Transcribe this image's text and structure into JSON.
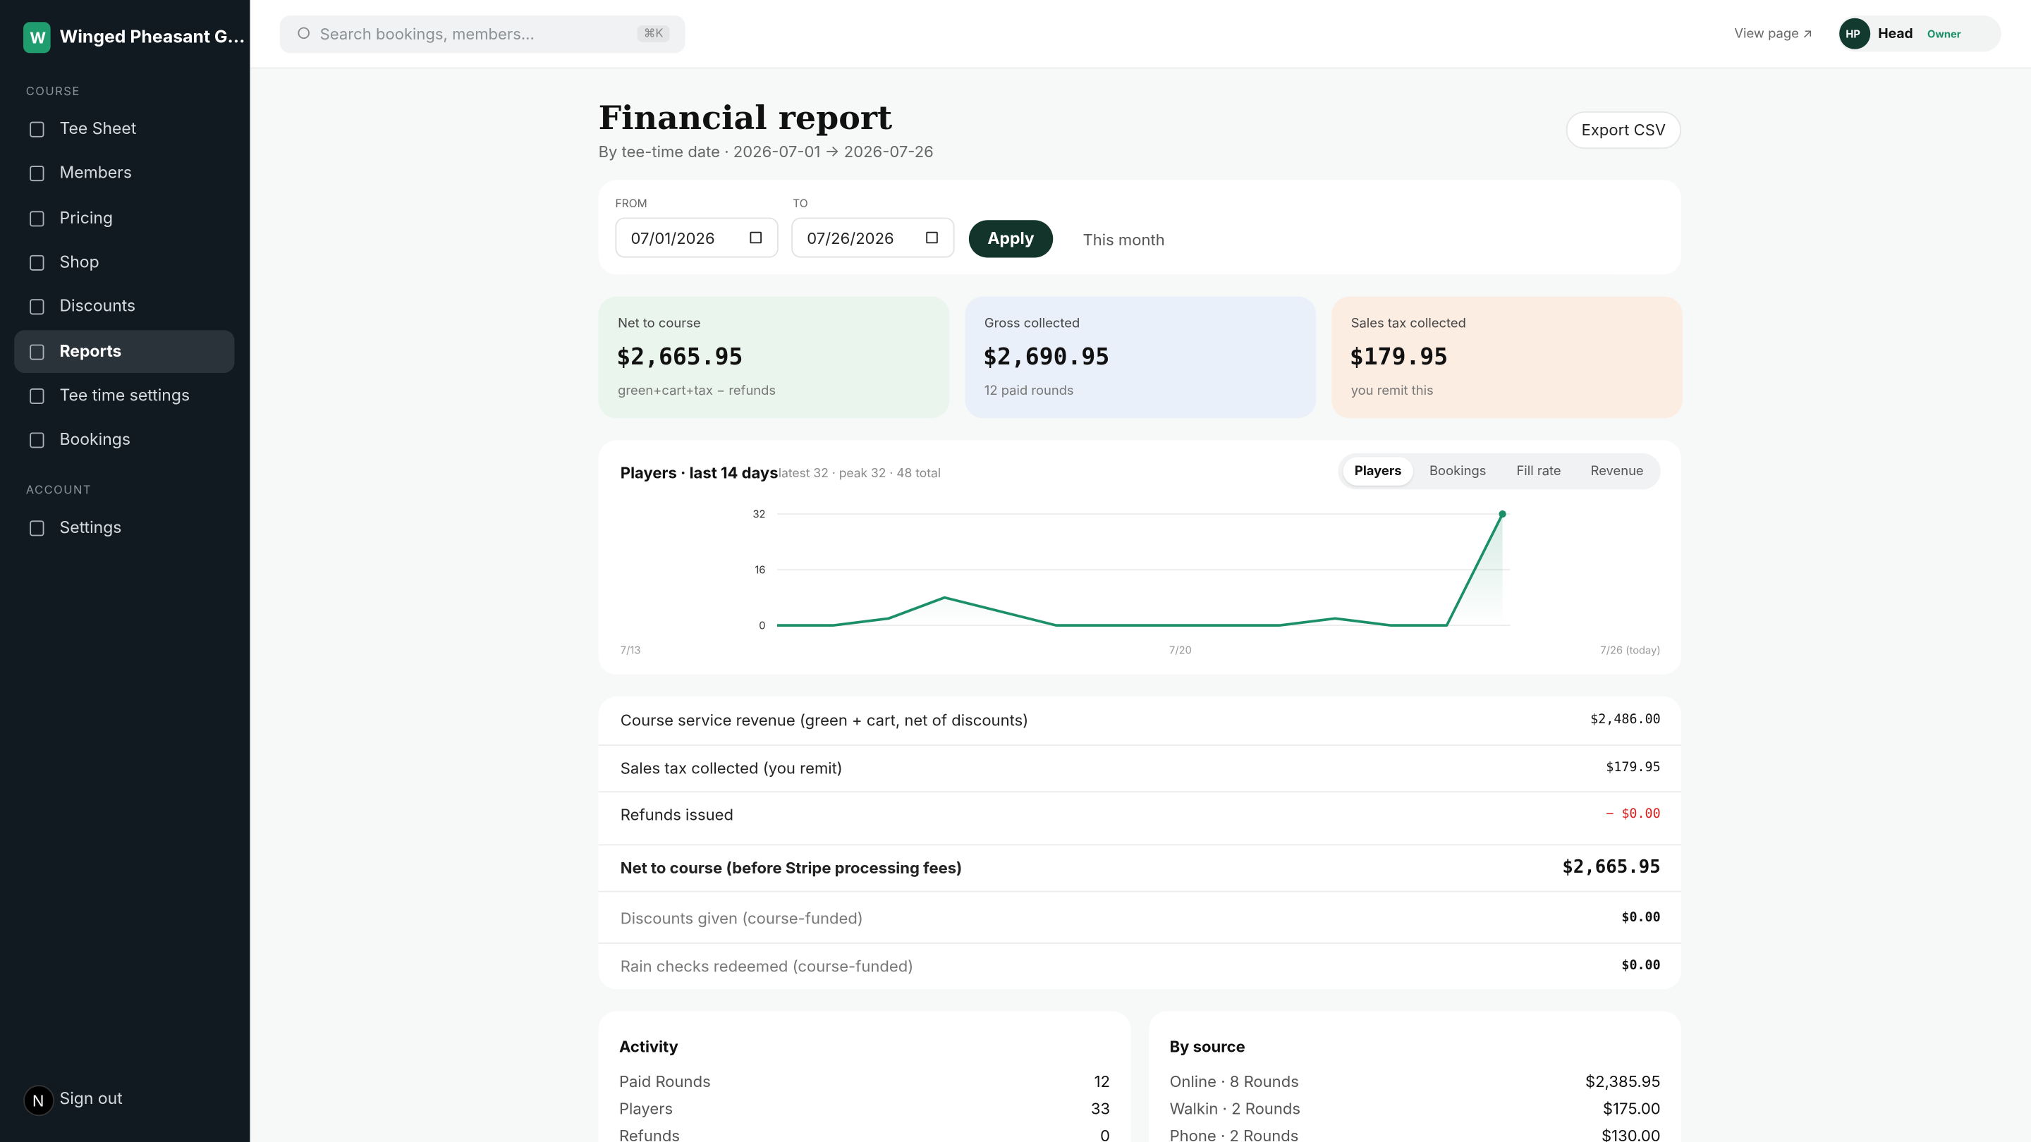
{
  "sidebar": {
    "logo": "W",
    "brand": "Winged Pheasant G...",
    "sections": [
      {
        "title": "COURSE",
        "items": [
          "Tee Sheet",
          "Members",
          "Pricing",
          "Shop",
          "Discounts",
          "Reports",
          "Tee time settings",
          "Bookings"
        ]
      },
      {
        "title": "ACCOUNT",
        "items": [
          "Settings"
        ]
      }
    ],
    "active": "Reports",
    "avatar": "N",
    "signout": "Sign out"
  },
  "topbar": {
    "search": "Search bookings, members...",
    "shortcut": "⌘K",
    "view_page": "View page ↗",
    "initials": "HP",
    "user": "Head",
    "role": "Owner"
  },
  "header": {
    "title": "Financial report",
    "subtitle": "By tee-time date · 2026-07-01 → 2026-07-26",
    "export": "Export CSV"
  },
  "filters": {
    "from_label": "FROM",
    "from": "07/01/2026",
    "to_label": "TO",
    "to": "07/26/2026",
    "apply": "Apply",
    "preset": "This month"
  },
  "kpis": [
    {
      "label": "Net to course",
      "value": "$2,665.95",
      "note": "green+cart+tax − refunds"
    },
    {
      "label": "Gross collected",
      "value": "$2,690.95",
      "note": "12 paid rounds"
    },
    {
      "label": "Sales tax collected",
      "value": "$179.95",
      "note": "you remit this"
    }
  ],
  "tabs": [
    "Players",
    "Bookings",
    "Fill rate",
    "Revenue"
  ],
  "chart_data": {
    "type": "line",
    "title": "Players · last 14 days",
    "subtitle": "latest 32 · peak 32 · 48 total",
    "categories": [
      "7/13",
      null,
      null,
      null,
      null,
      null,
      null,
      "7/20",
      null,
      null,
      null,
      null,
      null,
      "7/26 (today)"
    ],
    "series": [
      {
        "name": "Players",
        "color": "#1a8f68",
        "values": [
          0,
          0,
          2,
          8,
          4,
          0,
          0,
          0,
          0,
          0,
          2,
          0,
          0,
          32
        ]
      }
    ],
    "ylim": [
      0,
      32
    ],
    "yticks": [
      0,
      16,
      32
    ],
    "grid": true
  },
  "ledger": [
    {
      "label": "Course service revenue (green + cart, net of discounts)",
      "value": "$2,486.00"
    },
    {
      "label": "Sales tax collected (you remit)",
      "value": "$179.95"
    },
    {
      "label": "Refunds issued",
      "value": "− $0.00"
    },
    {
      "label": "Net to course (before Stripe processing fees)",
      "value": "$2,665.95"
    },
    {
      "label": "Discounts given (course-funded)",
      "value": "$0.00"
    },
    {
      "label": "Rain checks redeemed (course-funded)",
      "value": "$0.00"
    }
  ],
  "activity": {
    "title": "Activity",
    "rows": [
      [
        "Paid Rounds",
        "12"
      ],
      [
        "Players",
        "33"
      ],
      [
        "Refunds",
        "0"
      ]
    ]
  },
  "by_source": {
    "title": "By source",
    "rows": [
      [
        "Online · 8 Rounds",
        "$2,385.95"
      ],
      [
        "Walkin · 2 Rounds",
        "$175.00"
      ],
      [
        "Phone · 2 Rounds",
        "$130.00"
      ]
    ]
  }
}
